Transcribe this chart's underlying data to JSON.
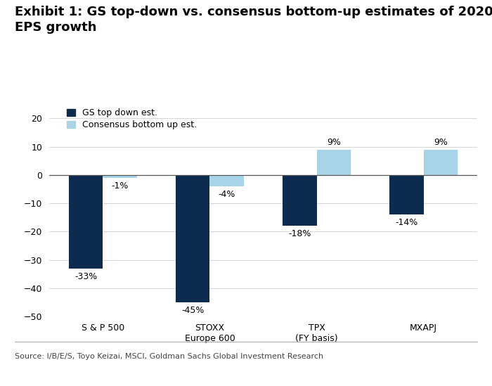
{
  "title": "Exhibit 1: GS top-down vs. consensus bottom-up estimates of 2020\nEPS growth",
  "categories": [
    "S & P 500",
    "STOXX\nEurope 600",
    "TPX\n(FY basis)",
    "MXAPJ"
  ],
  "gs_values": [
    -33,
    -45,
    -18,
    -14
  ],
  "consensus_values": [
    -1,
    -4,
    9,
    9
  ],
  "gs_color": "#0d2b4e",
  "consensus_color": "#a8d4e8",
  "gs_label": "GS top down est.",
  "consensus_label": "Consensus bottom up est.",
  "ylim": [
    -50,
    25
  ],
  "yticks": [
    -50,
    -40,
    -30,
    -20,
    -10,
    0,
    10,
    20
  ],
  "source_text": "Source: I/B/E/S, Toyo Keizai, MSCI, Goldman Sachs Global Investment Research",
  "gs_annotations": [
    "-33%",
    "-45%",
    "-18%",
    "-14%"
  ],
  "consensus_annotations": [
    "-1%",
    "-4%",
    "9%",
    "9%"
  ],
  "bar_width": 0.32,
  "title_fontsize": 13,
  "label_fontsize": 9,
  "tick_fontsize": 9,
  "legend_fontsize": 9
}
